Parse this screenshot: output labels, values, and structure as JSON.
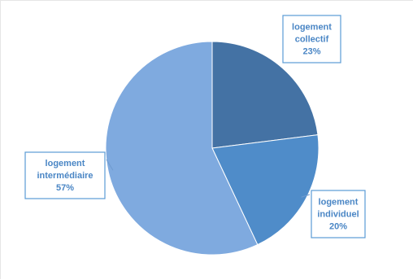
{
  "chart_data": {
    "type": "pie",
    "title": "",
    "start_angle_deg": 0,
    "direction": "clockwise",
    "slices": [
      {
        "label_lines": [
          "logement",
          "collectif"
        ],
        "value": 23,
        "value_text": "23%",
        "color": "#4472a4"
      },
      {
        "label_lines": [
          "logement",
          "individuel"
        ],
        "value": 20,
        "value_text": "20%",
        "color": "#4f8cc9"
      },
      {
        "label_lines": [
          "logement",
          "intermédiaire"
        ],
        "value": 57,
        "value_text": "57%",
        "color": "#7faadf"
      }
    ],
    "legend": "none",
    "label_border_color": "#5b9bd5",
    "label_text_color": "#4a86c5"
  }
}
